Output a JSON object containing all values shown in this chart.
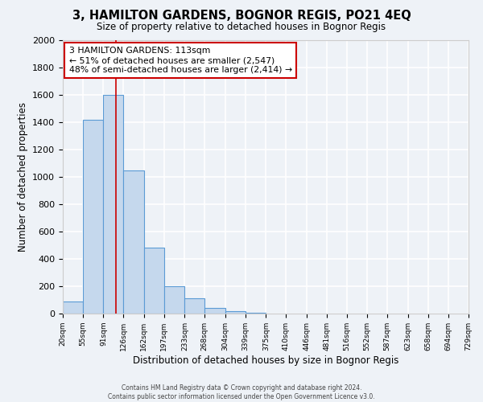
{
  "title": "3, HAMILTON GARDENS, BOGNOR REGIS, PO21 4EQ",
  "subtitle": "Size of property relative to detached houses in Bognor Regis",
  "xlabel": "Distribution of detached houses by size in Bognor Regis",
  "ylabel": "Number of detached properties",
  "bin_labels": [
    "20sqm",
    "55sqm",
    "91sqm",
    "126sqm",
    "162sqm",
    "197sqm",
    "233sqm",
    "268sqm",
    "304sqm",
    "339sqm",
    "375sqm",
    "410sqm",
    "446sqm",
    "481sqm",
    "516sqm",
    "552sqm",
    "587sqm",
    "623sqm",
    "658sqm",
    "694sqm",
    "729sqm"
  ],
  "bin_edges": [
    20,
    55,
    91,
    126,
    162,
    197,
    233,
    268,
    304,
    339,
    375,
    410,
    446,
    481,
    516,
    552,
    587,
    623,
    658,
    694,
    729
  ],
  "bar_heights": [
    90,
    1420,
    1600,
    1050,
    480,
    200,
    110,
    40,
    20,
    5,
    2,
    0,
    0,
    0,
    0,
    0,
    0,
    0,
    0,
    0
  ],
  "bar_color": "#c5d8ed",
  "bar_edge_color": "#5b9bd5",
  "bar_edge_width": 0.8,
  "red_line_x": 113,
  "ylim": [
    0,
    2000
  ],
  "yticks": [
    0,
    200,
    400,
    600,
    800,
    1000,
    1200,
    1400,
    1600,
    1800,
    2000
  ],
  "annotation_text": "3 HAMILTON GARDENS: 113sqm\n← 51% of detached houses are smaller (2,547)\n48% of semi-detached houses are larger (2,414) →",
  "annotation_box_color": "#ffffff",
  "annotation_box_edge_color": "#cc0000",
  "footer_line1": "Contains HM Land Registry data © Crown copyright and database right 2024.",
  "footer_line2": "Contains public sector information licensed under the Open Government Licence v3.0.",
  "background_color": "#eef2f7",
  "grid_color": "#ffffff"
}
